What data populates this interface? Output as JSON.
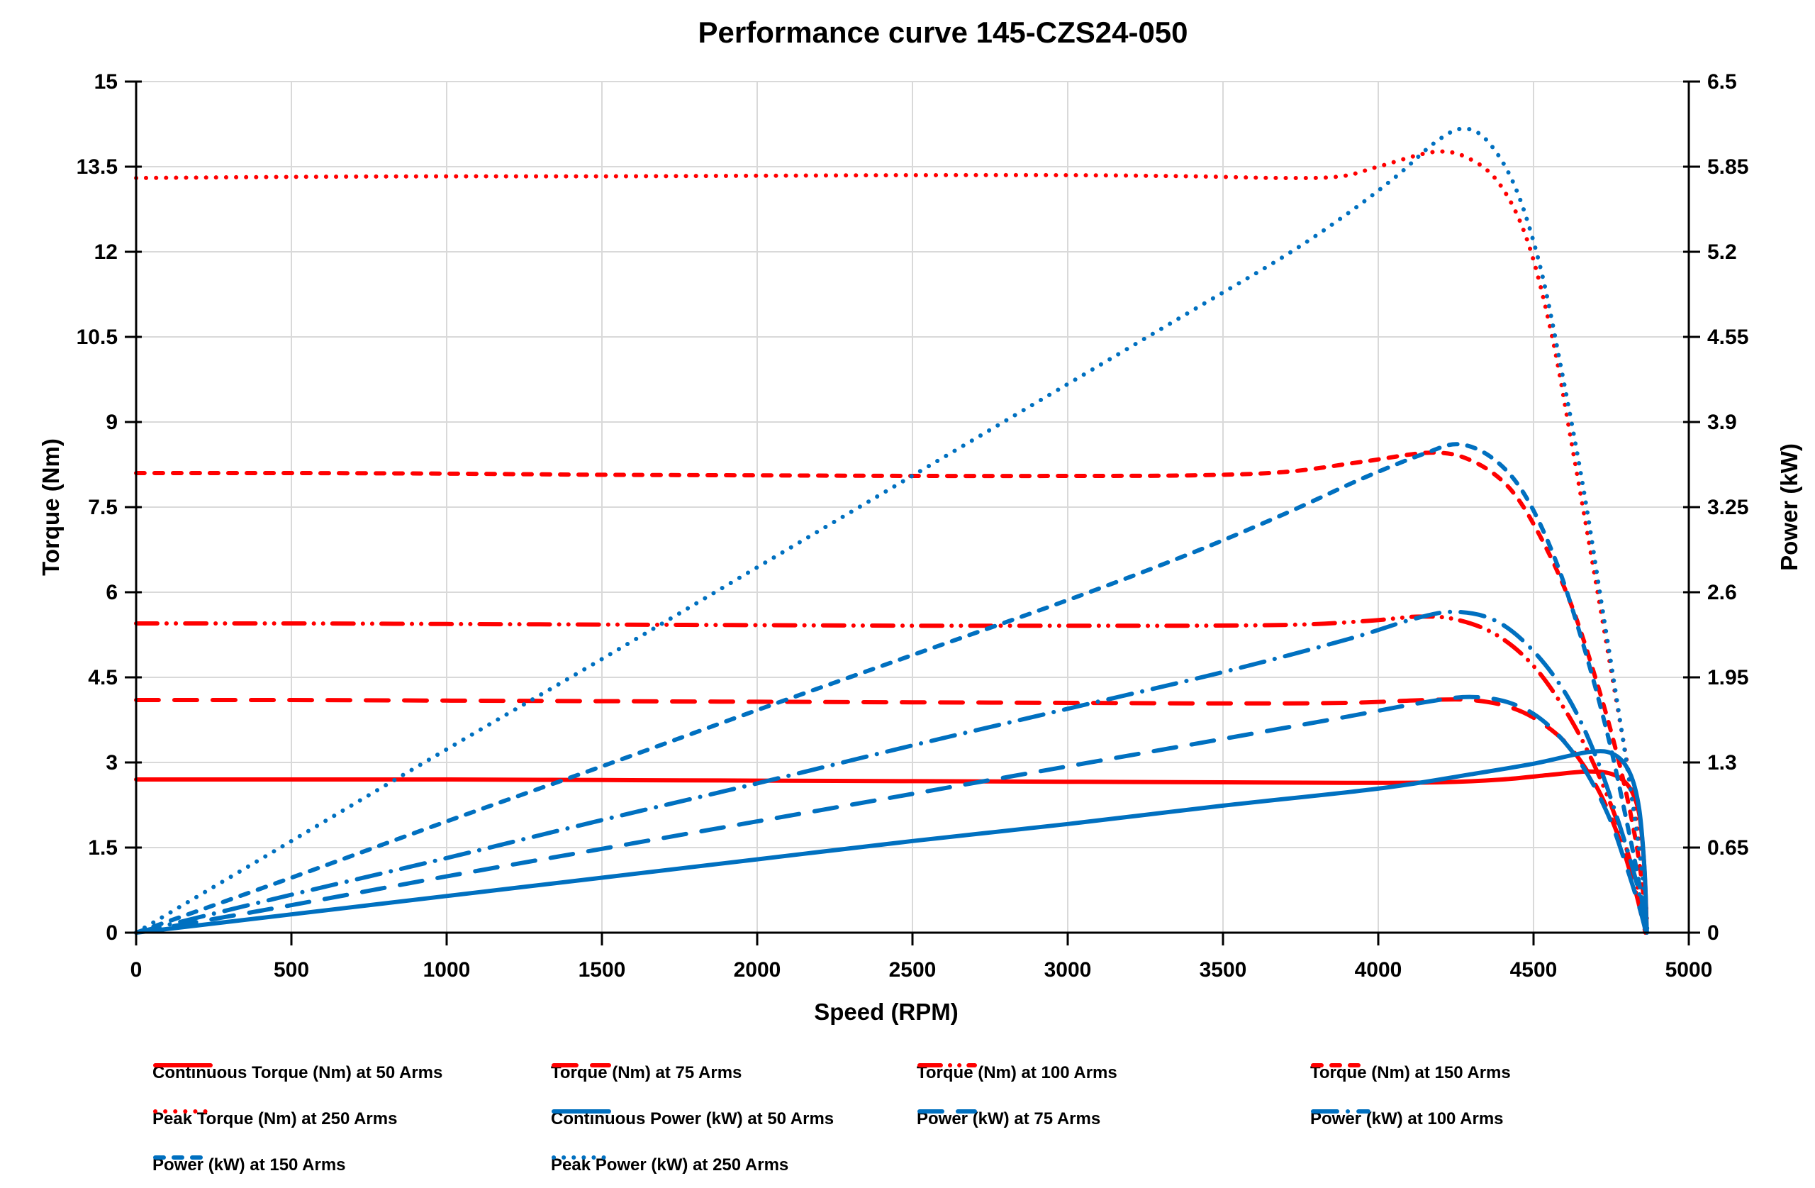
{
  "title": "Performance curve 145-CZS24-050",
  "chart_data": {
    "type": "line",
    "title": "Performance curve 145-CZS24-050",
    "grid": true,
    "legend_position": "bottom",
    "colors": {
      "torque_red": "#FF0000",
      "power_blue": "#0070C0",
      "gridline": "#D9D9D9",
      "axis": "#000000",
      "background": "#FFFFFF",
      "text": "#000000"
    },
    "x_axis": {
      "label": "Speed (RPM)",
      "min": 0,
      "max": 5000,
      "tick_values": [
        0,
        500,
        1000,
        1500,
        2000,
        2500,
        3000,
        3500,
        4000,
        4500,
        5000
      ],
      "tick_labels": [
        "0",
        "500",
        "1000",
        "1500",
        "2000",
        "2500",
        "3000",
        "3500",
        "4000",
        "4500",
        "5000"
      ]
    },
    "y_left": {
      "label": "Torque (Nm)",
      "min": 0,
      "max": 15,
      "tick_values": [
        0,
        1.5,
        3,
        4.5,
        6,
        7.5,
        9,
        10.5,
        12,
        13.5,
        15
      ],
      "tick_labels": [
        "0",
        "1.5",
        "3",
        "4.5",
        "6",
        "7.5",
        "9",
        "10.5",
        "12",
        "13.5",
        "15"
      ]
    },
    "y_right": {
      "label": "Power (kW)",
      "min": 0,
      "max": 6.5,
      "tick_values": [
        0,
        0.65,
        1.3,
        1.95,
        2.6,
        3.25,
        3.9,
        4.55,
        5.2,
        5.85,
        6.5
      ],
      "tick_labels": [
        "0",
        "0.65",
        "1.3",
        "1.95",
        "2.6",
        "3.25",
        "3.9",
        "4.55",
        "5.2",
        "5.85",
        "6.5"
      ]
    },
    "series": [
      {
        "id": "torque-50",
        "name": "Continuous Torque (Nm) at 50 Arms",
        "axis": "left",
        "color": "#FF0000",
        "style": "solid",
        "points": [
          [
            0,
            2.7
          ],
          [
            500,
            2.7
          ],
          [
            1000,
            2.7
          ],
          [
            1500,
            2.69
          ],
          [
            2000,
            2.68
          ],
          [
            2500,
            2.67
          ],
          [
            3000,
            2.66
          ],
          [
            3500,
            2.65
          ],
          [
            3900,
            2.64
          ],
          [
            4200,
            2.65
          ],
          [
            4400,
            2.7
          ],
          [
            4550,
            2.78
          ],
          [
            4680,
            2.84
          ],
          [
            4760,
            2.78
          ],
          [
            4810,
            2.55
          ],
          [
            4840,
            2.1
          ],
          [
            4855,
            1.3
          ],
          [
            4862,
            0.5
          ],
          [
            4864,
            0
          ]
        ]
      },
      {
        "id": "torque-75",
        "name": "Torque (Nm) at 75 Arms",
        "axis": "left",
        "color": "#FF0000",
        "style": "long-dash",
        "points": [
          [
            0,
            4.1
          ],
          [
            500,
            4.1
          ],
          [
            1000,
            4.09
          ],
          [
            1500,
            4.08
          ],
          [
            2000,
            4.07
          ],
          [
            2500,
            4.06
          ],
          [
            3000,
            4.05
          ],
          [
            3500,
            4.04
          ],
          [
            3900,
            4.05
          ],
          [
            4150,
            4.1
          ],
          [
            4300,
            4.1
          ],
          [
            4420,
            3.98
          ],
          [
            4520,
            3.72
          ],
          [
            4620,
            3.25
          ],
          [
            4710,
            2.5
          ],
          [
            4780,
            1.6
          ],
          [
            4825,
            0.8
          ],
          [
            4850,
            0.25
          ],
          [
            4860,
            0
          ]
        ]
      },
      {
        "id": "torque-100",
        "name": "Torque (Nm) at 100 Arms",
        "axis": "left",
        "color": "#FF0000",
        "style": "dash-dot-dot",
        "points": [
          [
            0,
            5.45
          ],
          [
            500,
            5.45
          ],
          [
            1000,
            5.44
          ],
          [
            1500,
            5.43
          ],
          [
            2000,
            5.42
          ],
          [
            2500,
            5.41
          ],
          [
            3000,
            5.41
          ],
          [
            3400,
            5.41
          ],
          [
            3750,
            5.43
          ],
          [
            3980,
            5.5
          ],
          [
            4130,
            5.57
          ],
          [
            4250,
            5.52
          ],
          [
            4380,
            5.25
          ],
          [
            4500,
            4.7
          ],
          [
            4610,
            3.85
          ],
          [
            4700,
            2.9
          ],
          [
            4780,
            1.8
          ],
          [
            4830,
            0.9
          ],
          [
            4855,
            0.3
          ],
          [
            4862,
            0
          ]
        ]
      },
      {
        "id": "torque-150",
        "name": "Torque (Nm) at 150 Arms",
        "axis": "left",
        "color": "#FF0000",
        "style": "short-dash",
        "points": [
          [
            0,
            8.1
          ],
          [
            500,
            8.1
          ],
          [
            1000,
            8.09
          ],
          [
            1500,
            8.07
          ],
          [
            2000,
            8.06
          ],
          [
            2500,
            8.05
          ],
          [
            3000,
            8.05
          ],
          [
            3400,
            8.06
          ],
          [
            3700,
            8.12
          ],
          [
            3950,
            8.3
          ],
          [
            4170,
            8.46
          ],
          [
            4300,
            8.32
          ],
          [
            4420,
            7.85
          ],
          [
            4520,
            7.0
          ],
          [
            4620,
            5.8
          ],
          [
            4710,
            4.3
          ],
          [
            4780,
            2.9
          ],
          [
            4830,
            1.6
          ],
          [
            4855,
            0.6
          ],
          [
            4862,
            0
          ]
        ]
      },
      {
        "id": "torque-250",
        "name": "Peak Torque (Nm) at 250 Arms",
        "axis": "left",
        "color": "#FF0000",
        "style": "dot",
        "points": [
          [
            0,
            13.3
          ],
          [
            500,
            13.32
          ],
          [
            1000,
            13.33
          ],
          [
            1500,
            13.33
          ],
          [
            2000,
            13.34
          ],
          [
            2500,
            13.35
          ],
          [
            3000,
            13.35
          ],
          [
            3400,
            13.33
          ],
          [
            3700,
            13.3
          ],
          [
            3880,
            13.33
          ],
          [
            4000,
            13.5
          ],
          [
            4180,
            13.76
          ],
          [
            4290,
            13.65
          ],
          [
            4390,
            13.2
          ],
          [
            4480,
            12.2
          ],
          [
            4560,
            10.5
          ],
          [
            4630,
            8.4
          ],
          [
            4700,
            6.2
          ],
          [
            4760,
            4.3
          ],
          [
            4810,
            2.7
          ],
          [
            4845,
            1.4
          ],
          [
            4862,
            0.5
          ],
          [
            4866,
            0
          ]
        ]
      },
      {
        "id": "power-50",
        "name": "Continuous Power (kW) at 50 Arms",
        "axis": "right",
        "color": "#0070C0",
        "style": "solid",
        "points": [
          [
            0,
            0
          ],
          [
            500,
            0.14
          ],
          [
            1000,
            0.28
          ],
          [
            1500,
            0.42
          ],
          [
            2000,
            0.56
          ],
          [
            2500,
            0.7
          ],
          [
            3000,
            0.83
          ],
          [
            3500,
            0.97
          ],
          [
            4000,
            1.1
          ],
          [
            4300,
            1.21
          ],
          [
            4500,
            1.29
          ],
          [
            4680,
            1.38
          ],
          [
            4760,
            1.36
          ],
          [
            4810,
            1.22
          ],
          [
            4840,
            0.95
          ],
          [
            4857,
            0.5
          ],
          [
            4863,
            0.12
          ],
          [
            4865,
            0
          ]
        ]
      },
      {
        "id": "power-75",
        "name": "Power (kW) at 75 Arms",
        "axis": "right",
        "color": "#0070C0",
        "style": "long-dash",
        "points": [
          [
            0,
            0
          ],
          [
            500,
            0.21
          ],
          [
            1000,
            0.43
          ],
          [
            1500,
            0.64
          ],
          [
            2000,
            0.85
          ],
          [
            2500,
            1.06
          ],
          [
            3000,
            1.27
          ],
          [
            3500,
            1.48
          ],
          [
            3900,
            1.65
          ],
          [
            4150,
            1.76
          ],
          [
            4300,
            1.8
          ],
          [
            4430,
            1.75
          ],
          [
            4540,
            1.6
          ],
          [
            4650,
            1.3
          ],
          [
            4740,
            0.9
          ],
          [
            4800,
            0.5
          ],
          [
            4840,
            0.2
          ],
          [
            4857,
            0.05
          ],
          [
            4860,
            0
          ]
        ]
      },
      {
        "id": "power-100",
        "name": "Power (kW) at 100 Arms",
        "axis": "right",
        "color": "#0070C0",
        "style": "dash-dot",
        "points": [
          [
            0,
            0
          ],
          [
            500,
            0.29
          ],
          [
            1000,
            0.57
          ],
          [
            1500,
            0.86
          ],
          [
            2000,
            1.14
          ],
          [
            2500,
            1.43
          ],
          [
            3000,
            1.71
          ],
          [
            3500,
            1.99
          ],
          [
            3900,
            2.24
          ],
          [
            4120,
            2.4
          ],
          [
            4250,
            2.45
          ],
          [
            4380,
            2.38
          ],
          [
            4500,
            2.15
          ],
          [
            4610,
            1.8
          ],
          [
            4700,
            1.35
          ],
          [
            4780,
            0.8
          ],
          [
            4830,
            0.4
          ],
          [
            4855,
            0.12
          ],
          [
            4862,
            0
          ]
        ]
      },
      {
        "id": "power-150",
        "name": "Power (kW) at 150 Arms",
        "axis": "right",
        "color": "#0070C0",
        "style": "short-dash",
        "points": [
          [
            0,
            0
          ],
          [
            500,
            0.42
          ],
          [
            1000,
            0.85
          ],
          [
            1500,
            1.27
          ],
          [
            2000,
            1.7
          ],
          [
            2500,
            2.12
          ],
          [
            3000,
            2.54
          ],
          [
            3400,
            2.9
          ],
          [
            3700,
            3.2
          ],
          [
            3950,
            3.47
          ],
          [
            4150,
            3.66
          ],
          [
            4260,
            3.73
          ],
          [
            4370,
            3.62
          ],
          [
            4470,
            3.35
          ],
          [
            4570,
            2.85
          ],
          [
            4660,
            2.2
          ],
          [
            4740,
            1.5
          ],
          [
            4800,
            0.85
          ],
          [
            4840,
            0.38
          ],
          [
            4857,
            0.1
          ],
          [
            4862,
            0
          ]
        ]
      },
      {
        "id": "power-250",
        "name": "Peak Power (kW) at 250 Arms",
        "axis": "right",
        "color": "#0070C0",
        "style": "dot",
        "points": [
          [
            0,
            0
          ],
          [
            500,
            0.7
          ],
          [
            1000,
            1.4
          ],
          [
            1500,
            2.09
          ],
          [
            2000,
            2.79
          ],
          [
            2500,
            3.49
          ],
          [
            3000,
            4.19
          ],
          [
            3400,
            4.75
          ],
          [
            3700,
            5.17
          ],
          [
            3900,
            5.49
          ],
          [
            4060,
            5.78
          ],
          [
            4180,
            6.03
          ],
          [
            4270,
            6.14
          ],
          [
            4350,
            6.05
          ],
          [
            4440,
            5.7
          ],
          [
            4520,
            5.1
          ],
          [
            4590,
            4.3
          ],
          [
            4660,
            3.4
          ],
          [
            4720,
            2.5
          ],
          [
            4770,
            1.75
          ],
          [
            4815,
            1.05
          ],
          [
            4850,
            0.45
          ],
          [
            4864,
            0.08
          ],
          [
            4867,
            0
          ]
        ]
      }
    ]
  }
}
